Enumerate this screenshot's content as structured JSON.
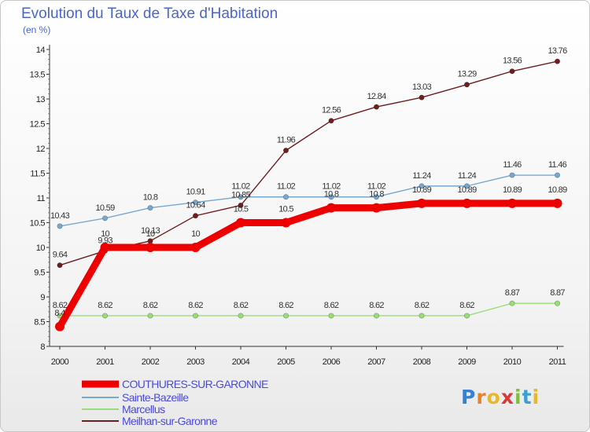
{
  "title": "Evolution du Taux de Taxe d'Habitation",
  "subtitle": "(en %)",
  "logo": "Proxiti",
  "chart_data": {
    "type": "line",
    "title": "Evolution du Taux de Taxe d'Habitation",
    "ylabel": "(en %)",
    "xlabel": "",
    "ylim": [
      8,
      14
    ],
    "yticks": [
      8,
      8.5,
      9,
      9.5,
      10,
      10.5,
      11,
      11.5,
      12,
      12.5,
      13,
      13.5,
      14
    ],
    "categories": [
      "2000",
      "2001",
      "2002",
      "2003",
      "2004",
      "2005",
      "2006",
      "2007",
      "2008",
      "2009",
      "2010",
      "2011"
    ],
    "grid": false,
    "legend_position": "bottom-left",
    "series": [
      {
        "name": "Meilhan-sur-Garonne",
        "color": "#6e1e1e",
        "values": [
          9.64,
          9.93,
          10.13,
          10.64,
          10.85,
          11.96,
          12.56,
          12.84,
          13.03,
          13.29,
          13.56,
          13.76
        ]
      },
      {
        "name": "Marcellus",
        "color": "#99dd77",
        "values": [
          8.62,
          8.62,
          8.62,
          8.62,
          8.62,
          8.62,
          8.62,
          8.62,
          8.62,
          8.62,
          8.87,
          8.87
        ]
      },
      {
        "name": "Sainte-Bazeille",
        "color": "#77a8d0",
        "values": [
          10.43,
          10.59,
          10.8,
          10.91,
          11.02,
          11.02,
          11.02,
          11.02,
          11.24,
          11.24,
          11.46,
          11.46
        ]
      },
      {
        "name": "COUTHURES-SUR-GARONNE",
        "color": "#ee0000",
        "values": [
          8.4,
          10,
          10,
          10,
          10.5,
          10.5,
          10.8,
          10.8,
          10.89,
          10.89,
          10.89,
          10.89
        ]
      }
    ],
    "labels": {
      "Meilhan-sur-Garonne": [
        "9.64",
        "9.93",
        "10.13",
        "10.64",
        "10.85",
        "11.96",
        "12.56",
        "12.84",
        "13.03",
        "13.29",
        "13.56",
        "13.76"
      ],
      "Marcellus": [
        "8.62",
        "8.62",
        "8.62",
        "8.62",
        "8.62",
        "8.62",
        "8.62",
        "8.62",
        "8.62",
        "8.62",
        "8.87",
        "8.87"
      ],
      "Sainte-Bazeille": [
        "10.43",
        "10.59",
        "10.8",
        "10.91",
        "11.02",
        "11.02",
        "11.02",
        "11.02",
        "11.24",
        "11.24",
        "11.46",
        "11.46"
      ],
      "COUTHURES-SUR-GARONNE": [
        "8.4",
        "10",
        "10",
        "10",
        "10.5",
        "10.5",
        "10.8",
        "10.8",
        "10.89",
        "10.89",
        "10.89",
        "10.89"
      ]
    },
    "legend": [
      "COUTHURES-SUR-GARONNE",
      "Sainte-Bazeille",
      "Marcellus",
      "Meilhan-sur-Garonne"
    ]
  }
}
